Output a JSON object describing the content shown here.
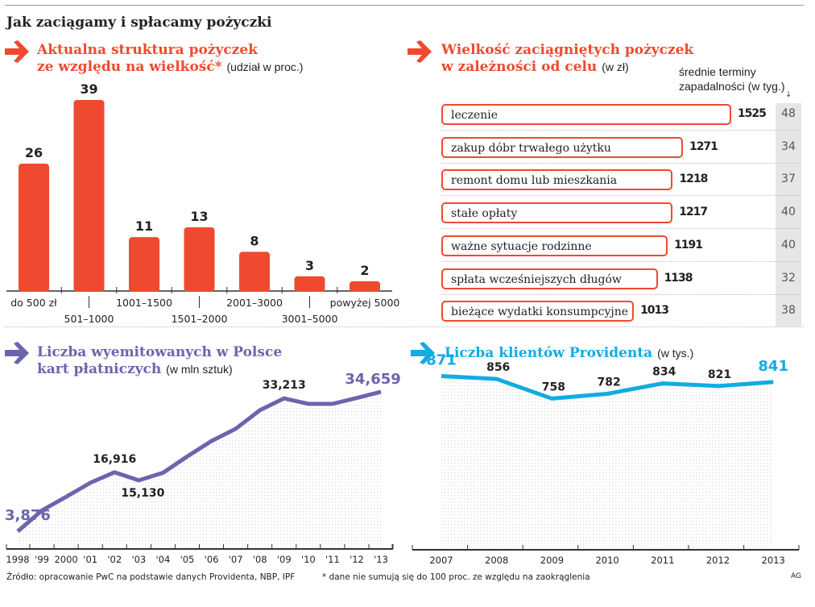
{
  "title": "Jak zaciągamy i spłacamy pożyczki",
  "colors": {
    "orange": "#ef4a2f",
    "purple": "#6b65ad",
    "blue": "#12abe3",
    "gray_column": "#e6e6e6"
  },
  "panels": {
    "sizes": {
      "title_line1": "Aktualna struktura pożyczek",
      "title_line2": "ze względu na wielkość*",
      "unit": "(udział w proc.)"
    },
    "purposes": {
      "title_line1": "Wielkość zaciągniętych pożyczek",
      "title_line2": "w zależności od celu",
      "unit": "(w zł)",
      "column_header_line1": "średnie terminy",
      "column_header_line2": "zapadalności (w tyg.)"
    },
    "cards": {
      "title_line1": "Liczba wyemitowanych w Polsce",
      "title_line2": "kart płatniczych",
      "unit": "(w mln sztuk)"
    },
    "clients": {
      "title": "Liczba klientów Providenta",
      "unit": "(w tys.)"
    }
  },
  "chart_data": [
    {
      "type": "bar",
      "categories": [
        "do 500 zł",
        "501–1000",
        "1001–1500",
        "1501–2000",
        "2001–3000",
        "3001–5000",
        "powyżej 5000"
      ],
      "values": [
        26,
        39,
        11,
        13,
        8,
        3,
        2
      ],
      "data_labels": [
        "26",
        "39",
        "11",
        "13",
        "8",
        "3",
        "2"
      ],
      "ylim": [
        0,
        40
      ],
      "color": "#ef4a2f"
    },
    {
      "type": "bar",
      "orientation": "horizontal",
      "categories": [
        "leczenie",
        "zakup dóbr trwałego użytku",
        "remont domu lub mieszkania",
        "stałe opłaty",
        "ważne sytuacje rodzinne",
        "spłata wcześniejszych długów",
        "bieżące wydatki konsumpcyjne"
      ],
      "values": [
        1525,
        1271,
        1218,
        1217,
        1191,
        1138,
        1013
      ],
      "data_labels": [
        "1525",
        "1271",
        "1218",
        "1217",
        "1191",
        "1138",
        "1013"
      ],
      "weeks": [
        "48",
        "34",
        "37",
        "40",
        "40",
        "32",
        "38"
      ]
    },
    {
      "type": "area",
      "x": [
        "1998",
        "'99",
        "2000",
        "'01",
        "'02",
        "'03",
        "'04",
        "'05",
        "'06",
        "'07",
        "'08",
        "'09",
        "'10",
        "'11",
        "'12",
        "'13"
      ],
      "values": [
        3.876,
        8.5,
        11.5,
        14.6,
        16.916,
        15.13,
        16.8,
        20.4,
        23.8,
        26.5,
        30.6,
        33.213,
        32.0,
        32.0,
        33.3,
        34.659
      ],
      "labels": [
        {
          "index": 0,
          "text": "3,876"
        },
        {
          "index": 4,
          "text": "16,916"
        },
        {
          "index": 5,
          "text": "15,130"
        },
        {
          "index": 11,
          "text": "33,213"
        },
        {
          "index": 15,
          "text": "34,659"
        }
      ],
      "ylim": [
        0,
        36
      ],
      "color": "#6b65ad"
    },
    {
      "type": "area",
      "x": [
        "2007",
        "2008",
        "2009",
        "2010",
        "2011",
        "2012",
        "2013"
      ],
      "values": [
        871,
        856,
        758,
        782,
        834,
        821,
        841
      ],
      "labels": [
        "871",
        "856",
        "758",
        "782",
        "834",
        "821",
        "841"
      ],
      "ylim": [
        0,
        900
      ],
      "color": "#12abe3"
    }
  ],
  "footer": {
    "source": "Źródło: opracowanie PwC na podstawie danych Providenta, NBP, IPF",
    "note": "* dane nie sumują się do 100 proc. ze względu na zaokrąglenia",
    "credit": "AG"
  }
}
